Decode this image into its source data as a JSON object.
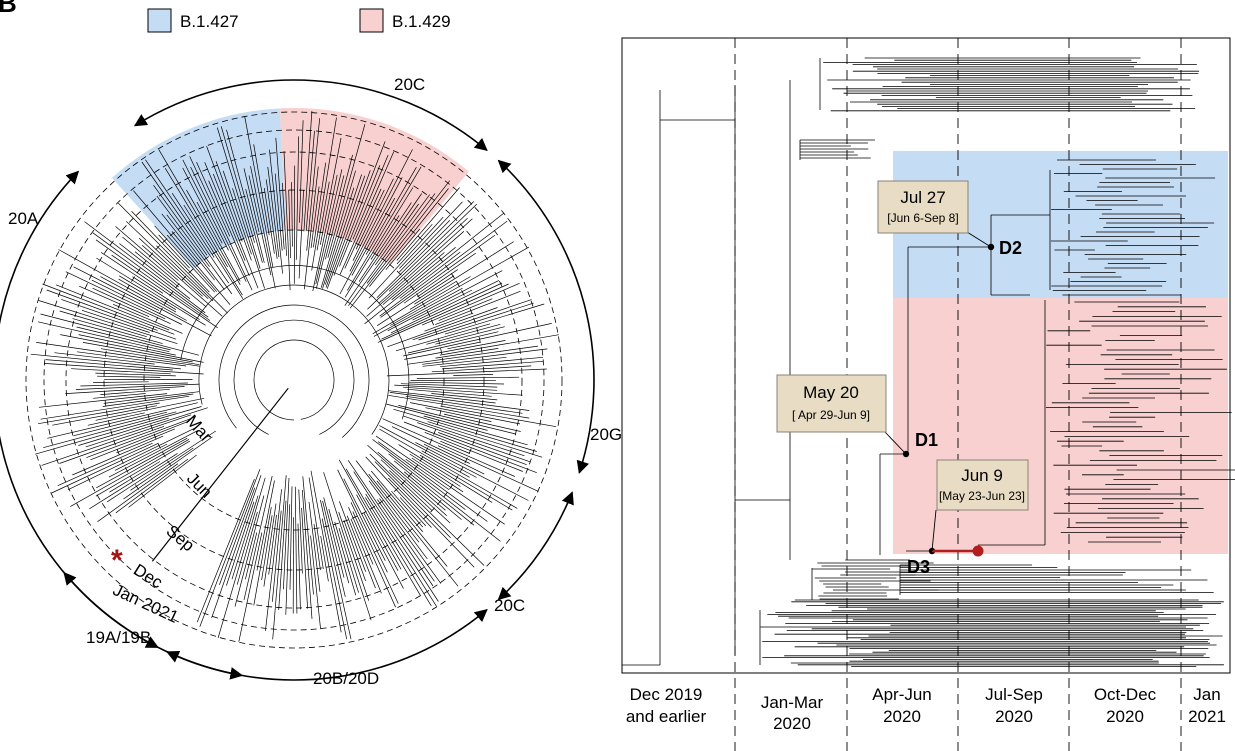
{
  "panel_letter": "B",
  "legend": [
    {
      "label": "B.1.427",
      "color": "#c5dcf5"
    },
    {
      "label": "B.1.429",
      "color": "#f9d0d0"
    }
  ],
  "radial": {
    "clades": [
      {
        "label": "20C"
      },
      {
        "label": "20A"
      },
      {
        "label": "20G"
      },
      {
        "label": "20C"
      },
      {
        "label": "20B/20D"
      },
      {
        "label": "19A/19B"
      }
    ],
    "time_rings": [
      "Mar",
      "Jun",
      "Sep",
      "Dec",
      "Jan 2021"
    ],
    "marker": "*"
  },
  "linear": {
    "annotations": [
      {
        "date": "Jul 27",
        "range": "[Jun 6-Sep 8]",
        "node": "D2"
      },
      {
        "date": "May 20",
        "range": "[ Apr 29-Jun 9]",
        "node": "D1"
      },
      {
        "date": "Jun 9",
        "range": "[May 23-Jun 23]",
        "node": "D3"
      }
    ],
    "axis": [
      {
        "line1": "Dec 2019",
        "line2": "and earlier"
      },
      {
        "line1": "Jan-Mar",
        "line2": "2020"
      },
      {
        "line1": "Apr-Jun",
        "line2": "2020"
      },
      {
        "line1": "Jul-Sep",
        "line2": "2020"
      },
      {
        "line1": "Oct-Dec",
        "line2": "2020"
      },
      {
        "line1": "Jan",
        "line2": "2021"
      }
    ]
  },
  "colors": {
    "blue_region": "#c5dcf5",
    "pink_region": "#f9d0d0",
    "box_fill": "#e8dcc5",
    "node_dot": "#b01e1e",
    "tree": "#000000"
  }
}
